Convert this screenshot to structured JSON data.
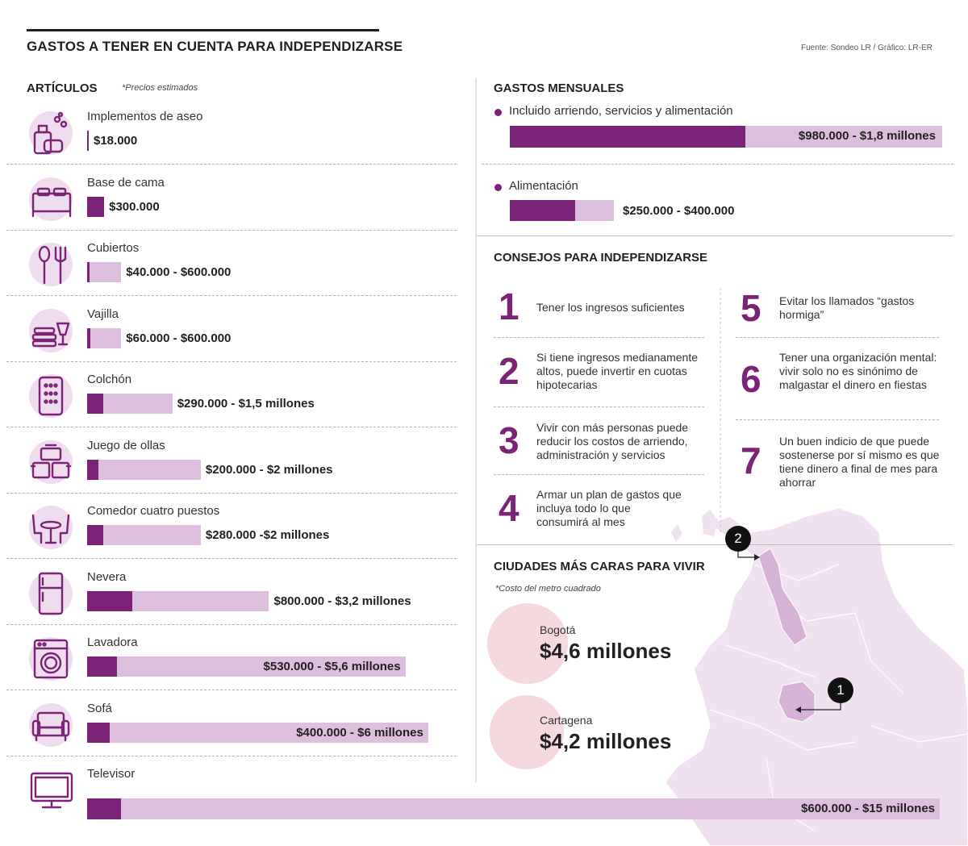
{
  "header": {
    "title": "GASTOS A TENER EN CUENTA PARA INDEPENDIZARSE",
    "source": "Fuente: Sondeo LR / Gráfico: LR-ER"
  },
  "colors": {
    "primary": "#7b2477",
    "light": "#dcbfdc",
    "pink": "#f6d9df"
  },
  "articulos": {
    "title": "ARTÍCULOS",
    "note": "*Precios estimados"
  },
  "chart_data": {
    "type": "bar",
    "title": "ARTÍCULOS",
    "unit": "COP (millions)",
    "max_value": 15,
    "items": [
      {
        "label": "Implementos de aseo",
        "value_label": "$18.000",
        "min": 0.018,
        "max": 0.018,
        "icon": "cleaning-supplies-icon"
      },
      {
        "label": "Base de cama",
        "value_label": "$300.000",
        "min": 0.3,
        "max": 0.3,
        "icon": "bed-icon"
      },
      {
        "label": "Cubiertos",
        "value_label": "$40.000 - $600.000",
        "min": 0.04,
        "max": 0.6,
        "icon": "cutlery-icon"
      },
      {
        "label": "Vajilla",
        "value_label": "$60.000 - $600.000",
        "min": 0.06,
        "max": 0.6,
        "icon": "dishes-icon"
      },
      {
        "label": "Colchón",
        "value_label": "$290.000 - $1,5 millones",
        "min": 0.29,
        "max": 1.5,
        "icon": "mattress-icon"
      },
      {
        "label": "Juego de ollas",
        "value_label": "$200.000 - $2 millones",
        "min": 0.2,
        "max": 2,
        "icon": "pots-icon"
      },
      {
        "label": "Comedor cuatro puestos",
        "value_label": "$280.000 -$2 millones",
        "min": 0.28,
        "max": 2,
        "icon": "dining-table-icon"
      },
      {
        "label": "Nevera",
        "value_label": "$800.000 - $3,2 millones",
        "min": 0.8,
        "max": 3.2,
        "icon": "fridge-icon"
      },
      {
        "label": "Lavadora",
        "value_label": "$530.000 - $5,6 millones",
        "min": 0.53,
        "max": 5.6,
        "icon": "washing-machine-icon"
      },
      {
        "label": "Sofá",
        "value_label": "$400.000 - $6 millones",
        "min": 0.4,
        "max": 6,
        "icon": "sofa-icon"
      },
      {
        "label": "Televisor",
        "value_label": "$600.000 - $15 millones",
        "min": 0.6,
        "max": 15,
        "icon": "tv-icon"
      }
    ]
  },
  "monthly": {
    "title": "GASTOS MENSUALES",
    "items": [
      {
        "label": "Incluido arriendo, servicios y alimentación",
        "value_label": "$980.000 - $1,8 millones",
        "min": 0.98,
        "max": 1.8
      },
      {
        "label": "Alimentación",
        "value_label": "$250.000 - $400.000",
        "min": 0.25,
        "max": 0.4
      }
    ]
  },
  "tips": {
    "title": "CONSEJOS PARA INDEPENDIZARSE",
    "items": [
      {
        "n": "1",
        "text": "Tener los ingresos suficientes"
      },
      {
        "n": "2",
        "text": "Si tiene ingresos medianamente altos, puede invertir en cuotas hipotecarias"
      },
      {
        "n": "3",
        "text": "Vivir con más personas puede reducir los costos de arriendo, administración y servicios"
      },
      {
        "n": "4",
        "text": "Armar un plan de gastos que incluya todo lo que consumirá al mes"
      },
      {
        "n": "5",
        "text": "Evitar los llamados “gastos hormiga”"
      },
      {
        "n": "6",
        "text": "Tener una organización mental: vivir solo no es sinónimo de malgastar el dinero en fiestas"
      },
      {
        "n": "7",
        "text": "Un buen indicio de que puede sostenerse por sí mismo es que tiene dinero a final de mes para ahorrar"
      }
    ]
  },
  "cities": {
    "title": "CIUDADES MÁS CARAS PARA VIVIR",
    "note": "*Costo del metro cuadrado",
    "items": [
      {
        "rank": "1",
        "name": "Bogotá",
        "value": "$4,6 millones"
      },
      {
        "rank": "2",
        "name": "Cartagena",
        "value": "$4,2 millones"
      }
    ]
  }
}
